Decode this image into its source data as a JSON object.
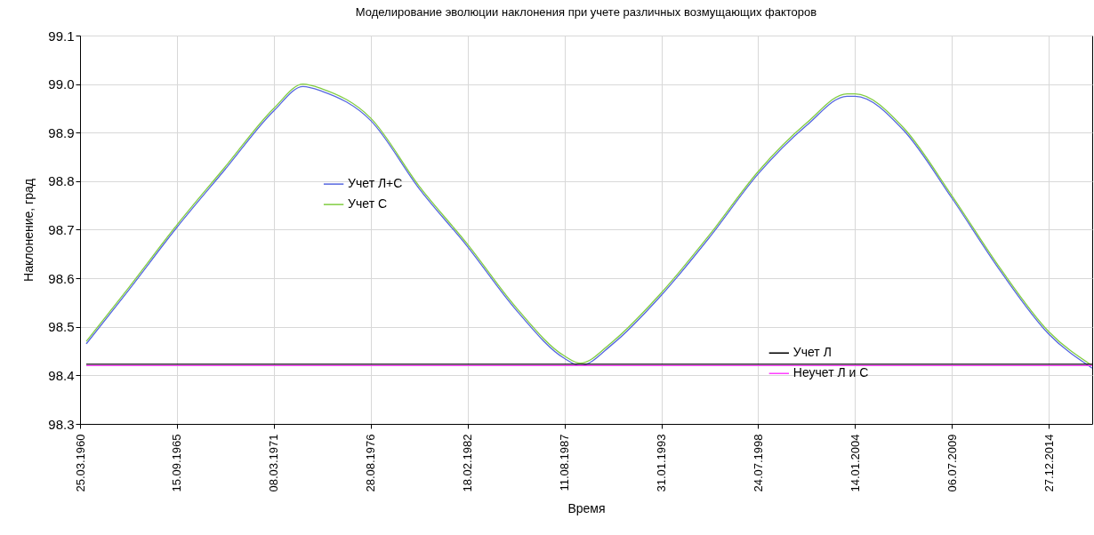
{
  "chart_data": {
    "type": "line",
    "title": "Моделирование эволюции наклонения при учете различных возмущающих факторов",
    "xlabel": "Время",
    "ylabel": "Наклонение, град",
    "xlim": [
      "1960-03-25",
      "2017-06-10"
    ],
    "xticks": [
      {
        "value": "1960-03-25",
        "label": "25.03.1960"
      },
      {
        "value": "1965-09-15",
        "label": "15.09.1965"
      },
      {
        "value": "1971-03-08",
        "label": "08.03.1971"
      },
      {
        "value": "1976-08-28",
        "label": "28.08.1976"
      },
      {
        "value": "1982-02-18",
        "label": "18.02.1982"
      },
      {
        "value": "1987-08-11",
        "label": "11.08.1987"
      },
      {
        "value": "1993-01-31",
        "label": "31.01.1993"
      },
      {
        "value": "1998-07-24",
        "label": "24.07.1998"
      },
      {
        "value": "2004-01-14",
        "label": "14.01.2004"
      },
      {
        "value": "2009-07-06",
        "label": "06.07.2009"
      },
      {
        "value": "2014-12-27",
        "label": "27.12.2014"
      }
    ],
    "ylim": [
      98.3,
      99.1
    ],
    "yticks": [
      98.3,
      98.4,
      98.5,
      98.6,
      98.7,
      98.8,
      98.9,
      {
        "value": 99,
        "label": "99.0"
      },
      99.1
    ],
    "grid": true,
    "legend": "center",
    "line_style": "solid",
    "marker": "none",
    "x": [
      "1960-08-01",
      "1962-12-19",
      "1965-09-15",
      "1968-06-11",
      "1971-03-08",
      "1972-11-01",
      "1973-12-03",
      "1976-08-28",
      "1979-05-24",
      "1982-02-18",
      "1984-11-14",
      "1987-08-11",
      "1988-07-01",
      "1990-05-07",
      "1993-01-31",
      "1995-10-28",
      "1998-07-24",
      "2001-04-20",
      "2003-08-01",
      "2004-01-14",
      "2006-10-10",
      "2009-07-06",
      "2012-04-01",
      "2014-12-27",
      "2017-06-10"
    ],
    "series": [
      {
        "name": "Учет Л+С",
        "color": "#5566e0",
        "values": [
          98.465,
          98.575,
          98.705,
          98.825,
          98.945,
          98.995,
          98.985,
          98.925,
          98.785,
          98.665,
          98.535,
          98.435,
          98.42,
          98.465,
          98.565,
          98.685,
          98.815,
          98.915,
          98.975,
          98.975,
          98.905,
          98.765,
          98.615,
          98.485,
          98.415
        ]
      },
      {
        "name": "Учет С",
        "color": "#80cc40",
        "values": [
          98.47,
          98.58,
          98.71,
          98.83,
          98.95,
          99.0,
          98.99,
          98.93,
          98.79,
          98.67,
          98.54,
          98.44,
          98.425,
          98.47,
          98.57,
          98.69,
          98.82,
          98.92,
          98.98,
          98.98,
          98.91,
          98.77,
          98.62,
          98.49,
          98.42
        ]
      },
      {
        "name": "Учет Л",
        "color": "#000000",
        "x": [
          "1960-08-01",
          "1988-07-01",
          "2017-06-10"
        ],
        "values": [
          98.423,
          98.423,
          98.423
        ]
      },
      {
        "name": "Неучет Л и С",
        "color": "#ff40ff",
        "x": [
          "1960-08-01",
          "1988-07-01",
          "2017-06-10"
        ],
        "values": [
          98.42,
          98.42,
          98.42
        ]
      }
    ]
  }
}
